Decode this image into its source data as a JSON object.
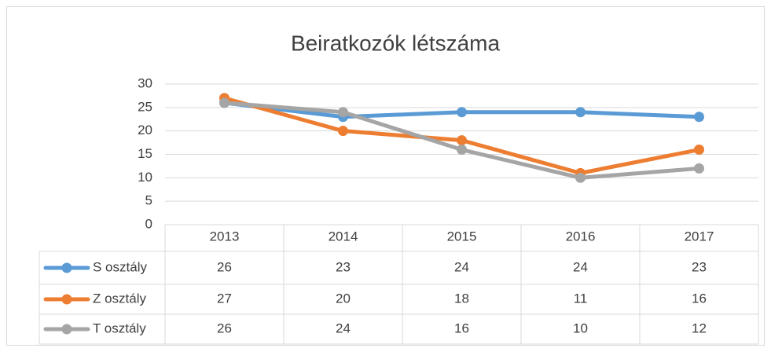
{
  "chart_data": {
    "type": "line",
    "title": "Beiratkozók létszáma",
    "categories": [
      "2013",
      "2014",
      "2015",
      "2016",
      "2017"
    ],
    "series": [
      {
        "name": "S osztály",
        "color": "#5b9bd5",
        "values": [
          26,
          23,
          24,
          24,
          23
        ]
      },
      {
        "name": "Z osztály",
        "color": "#ed7d31",
        "values": [
          27,
          20,
          18,
          11,
          16
        ]
      },
      {
        "name": "T osztály",
        "color": "#a5a5a5",
        "values": [
          26,
          24,
          16,
          10,
          12
        ]
      }
    ],
    "ylim": [
      0,
      30
    ],
    "yticks": [
      0,
      5,
      10,
      15,
      20,
      25,
      30
    ],
    "grid": true,
    "data_table": true
  }
}
